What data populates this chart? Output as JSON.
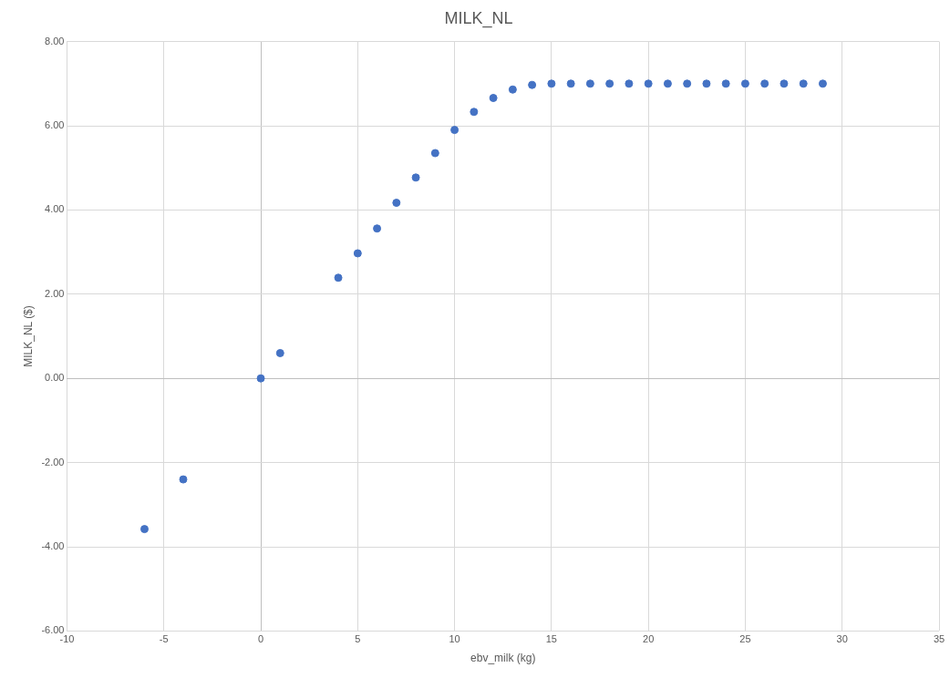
{
  "chart_data": {
    "type": "scatter",
    "title": "MILK_NL",
    "xlabel": "ebv_milk (kg)",
    "ylabel": "MILK_NL ($)",
    "x": [
      -6,
      -4,
      0,
      1,
      4,
      5,
      6,
      7,
      8,
      9,
      10,
      11,
      12,
      13,
      14,
      15,
      16,
      17,
      18,
      19,
      20,
      21,
      22,
      23,
      24,
      25,
      26,
      27,
      28,
      29
    ],
    "series": [
      {
        "color": "#4472c4",
        "values": [
          -3.58,
          -2.4,
          0,
          0.6,
          2.39,
          2.97,
          3.56,
          4.17,
          4.77,
          5.35,
          5.9,
          6.33,
          6.66,
          6.86,
          6.97,
          7,
          7,
          7,
          7,
          7,
          7,
          7,
          7,
          7,
          7,
          7,
          7,
          7,
          7,
          7
        ]
      }
    ],
    "xlim": [
      -10,
      35
    ],
    "xticks": [
      -10,
      -5,
      0,
      5,
      10,
      15,
      20,
      25,
      30,
      35
    ],
    "ylim": [
      -6,
      8
    ],
    "yticks": [
      {
        "value": -6,
        "label": "-6.00"
      },
      {
        "value": -4,
        "label": "-4.00"
      },
      {
        "value": -2,
        "label": "-2.00"
      },
      {
        "value": 0,
        "label": "0.00"
      },
      {
        "value": 2,
        "label": "2.00"
      },
      {
        "value": 4,
        "label": "4.00"
      },
      {
        "value": 6,
        "label": "6.00"
      },
      {
        "value": 8,
        "label": "8.00"
      }
    ],
    "grid": true,
    "legend": false,
    "marker": "circle"
  }
}
